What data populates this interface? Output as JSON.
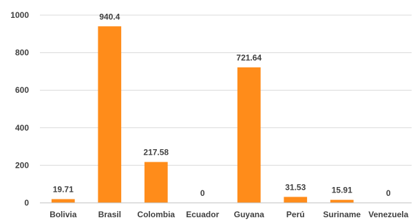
{
  "chart_data": {
    "type": "bar",
    "categories": [
      "Bolivia",
      "Brasil",
      "Colombia",
      "Ecuador",
      "Guyana",
      "Perú",
      "Suriname",
      "Venezuela"
    ],
    "values": [
      19.71,
      940.4,
      217.58,
      0,
      721.64,
      31.53,
      15.91,
      0
    ],
    "value_labels": [
      "19.71",
      "940.4",
      "217.58",
      "0",
      "721.64",
      "31.53",
      "15.91",
      "0"
    ],
    "ylim": [
      0,
      1000
    ],
    "yticks": [
      0,
      200,
      400,
      600,
      800,
      1000
    ],
    "grid": true,
    "legend": "none",
    "bar_color": "#FF8C1A"
  }
}
